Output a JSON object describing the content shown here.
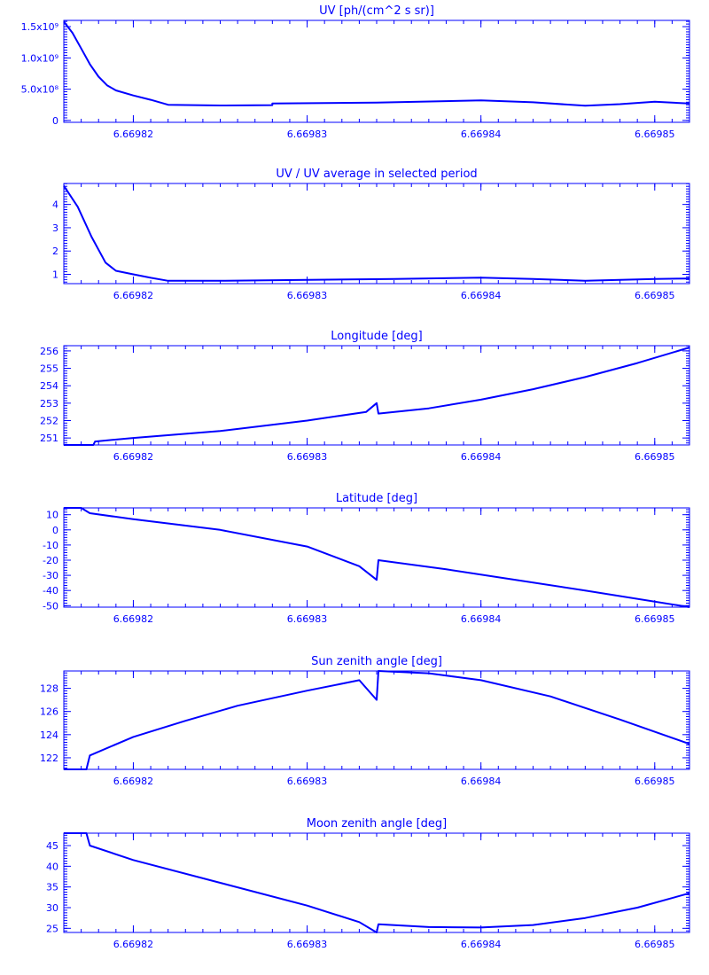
{
  "chart_data": [
    {
      "type": "line",
      "title": "UV [ph/(cm^2 s sr)]",
      "xlim": [
        6.669816,
        6.669852
      ],
      "ylim": [
        -30000000,
        1600000000
      ],
      "y_ticks": [
        0,
        500000000,
        1000000000,
        1500000000
      ],
      "y_tick_labels": [
        "0",
        "5.0x10⁸",
        "1.0x10⁹",
        "1.5x10⁹"
      ],
      "x_ticks": [
        6.66982,
        6.66983,
        6.66984,
        6.66985
      ],
      "x_tick_labels": [
        "6.66982",
        "6.66983",
        "6.66984",
        "6.66985"
      ],
      "series": [
        {
          "x": [
            6.669816,
            6.6698165,
            6.669817,
            6.6698175,
            6.669818,
            6.6698185,
            6.669819,
            6.66982,
            6.669821,
            6.669822,
            6.669825,
            6.669828,
            6.669828,
            6.669834,
            6.66984,
            6.669843,
            6.669846,
            6.669848,
            6.66985,
            6.669852
          ],
          "y": [
            1580000000,
            1400000000,
            1150000000,
            900000000,
            700000000,
            560000000,
            480000000,
            400000000,
            330000000,
            250000000,
            240000000,
            245000000,
            270000000,
            285000000,
            320000000,
            290000000,
            235000000,
            260000000,
            300000000,
            270000000
          ]
        }
      ]
    },
    {
      "type": "line",
      "title": "UV / UV average in selected period",
      "xlim": [
        6.669816,
        6.669852
      ],
      "ylim": [
        0.6,
        4.9
      ],
      "y_ticks": [
        1,
        2,
        3,
        4
      ],
      "y_tick_labels": [
        "1",
        "2",
        "3",
        "4"
      ],
      "x_ticks": [
        6.66982,
        6.66983,
        6.66984,
        6.66985
      ],
      "x_tick_labels": [
        "6.66982",
        "6.66983",
        "6.66984",
        "6.66985"
      ],
      "series": [
        {
          "x": [
            6.669816,
            6.6698168,
            6.6698176,
            6.6698184,
            6.669819,
            6.66982,
            6.669821,
            6.669822,
            6.669825,
            6.66983,
            6.669835,
            6.66984,
            6.669843,
            6.669846,
            6.66985,
            6.669852
          ],
          "y": [
            4.8,
            3.9,
            2.6,
            1.5,
            1.15,
            1.0,
            0.85,
            0.72,
            0.72,
            0.76,
            0.8,
            0.86,
            0.8,
            0.72,
            0.8,
            0.82
          ]
        }
      ]
    },
    {
      "type": "line",
      "title": "Longitude [deg]",
      "xlim": [
        6.669816,
        6.669852
      ],
      "ylim": [
        250.6,
        256.3
      ],
      "y_ticks": [
        251,
        252,
        253,
        254,
        255,
        256
      ],
      "y_tick_labels": [
        "251",
        "252",
        "253",
        "254",
        "255",
        "256"
      ],
      "x_ticks": [
        6.66982,
        6.66983,
        6.66984,
        6.66985
      ],
      "x_tick_labels": [
        "6.66982",
        "6.66983",
        "6.66984",
        "6.66985"
      ],
      "series": [
        {
          "x": [
            6.669816,
            6.6698177,
            6.6698178,
            6.66982,
            6.669825,
            6.66983,
            6.6698334,
            6.669834,
            6.6698341,
            6.669837,
            6.66984,
            6.669843,
            6.669846,
            6.669849,
            6.669852
          ],
          "y": [
            250.6,
            250.6,
            250.8,
            251.0,
            251.4,
            252.0,
            252.5,
            253.0,
            252.4,
            252.7,
            253.2,
            253.8,
            254.5,
            255.3,
            256.2
          ]
        }
      ]
    },
    {
      "type": "line",
      "title": "Latitude [deg]",
      "xlim": [
        6.669816,
        6.669852
      ],
      "ylim": [
        -51,
        14.5
      ],
      "y_ticks": [
        -50,
        -40,
        -30,
        -20,
        -10,
        0,
        10
      ],
      "y_tick_labels": [
        "-50",
        "-40",
        "-30",
        "-20",
        "-10",
        "0",
        "10"
      ],
      "x_ticks": [
        6.66982,
        6.66983,
        6.66984,
        6.66985
      ],
      "x_tick_labels": [
        "6.66982",
        "6.66983",
        "6.66984",
        "6.66985"
      ],
      "series": [
        {
          "x": [
            6.669816,
            6.669817,
            6.6698175,
            6.66982,
            6.669825,
            6.66983,
            6.669833,
            6.669834,
            6.6698341,
            6.669838,
            6.669842,
            6.669846,
            6.669852
          ],
          "y": [
            14.5,
            14.5,
            11,
            7,
            0,
            -11,
            -24,
            -33,
            -20,
            -26,
            -33,
            -40,
            -51
          ]
        }
      ]
    },
    {
      "type": "line",
      "title": "Sun zenith angle [deg]",
      "xlim": [
        6.669816,
        6.669852
      ],
      "ylim": [
        121,
        129.5
      ],
      "y_ticks": [
        122,
        124,
        126,
        128
      ],
      "y_tick_labels": [
        "122",
        "124",
        "126",
        "128"
      ],
      "x_ticks": [
        6.66982,
        6.66983,
        6.66984,
        6.66985
      ],
      "x_tick_labels": [
        "6.66982",
        "6.66983",
        "6.66984",
        "6.66985"
      ],
      "series": [
        {
          "x": [
            6.669816,
            6.6698173,
            6.6698175,
            6.66982,
            6.669823,
            6.669826,
            6.66983,
            6.669833,
            6.669834,
            6.6698341,
            6.669837,
            6.66984,
            6.669844,
            6.669848,
            6.669852
          ],
          "y": [
            121,
            121,
            122.2,
            123.8,
            125.2,
            126.5,
            127.8,
            128.7,
            127,
            129.5,
            129.3,
            128.7,
            127.3,
            125.3,
            123.2
          ]
        }
      ]
    },
    {
      "type": "line",
      "title": "Moon zenith angle [deg]",
      "xlim": [
        6.669816,
        6.669852
      ],
      "ylim": [
        24,
        48
      ],
      "y_ticks": [
        25,
        30,
        35,
        40,
        45
      ],
      "y_tick_labels": [
        "25",
        "30",
        "35",
        "40",
        "45"
      ],
      "x_ticks": [
        6.66982,
        6.66983,
        6.66984,
        6.66985
      ],
      "x_tick_labels": [
        "6.66982",
        "6.66983",
        "6.66984",
        "6.66985"
      ],
      "series": [
        {
          "x": [
            6.669816,
            6.6698173,
            6.6698175,
            6.66982,
            6.669825,
            6.66983,
            6.669833,
            6.669834,
            6.6698341,
            6.669837,
            6.66984,
            6.669843,
            6.669846,
            6.669849,
            6.669852
          ],
          "y": [
            48,
            48,
            45,
            41.5,
            36,
            30.5,
            26.5,
            24,
            26,
            25.3,
            25.2,
            25.8,
            27.5,
            30,
            33.5
          ]
        }
      ]
    }
  ]
}
